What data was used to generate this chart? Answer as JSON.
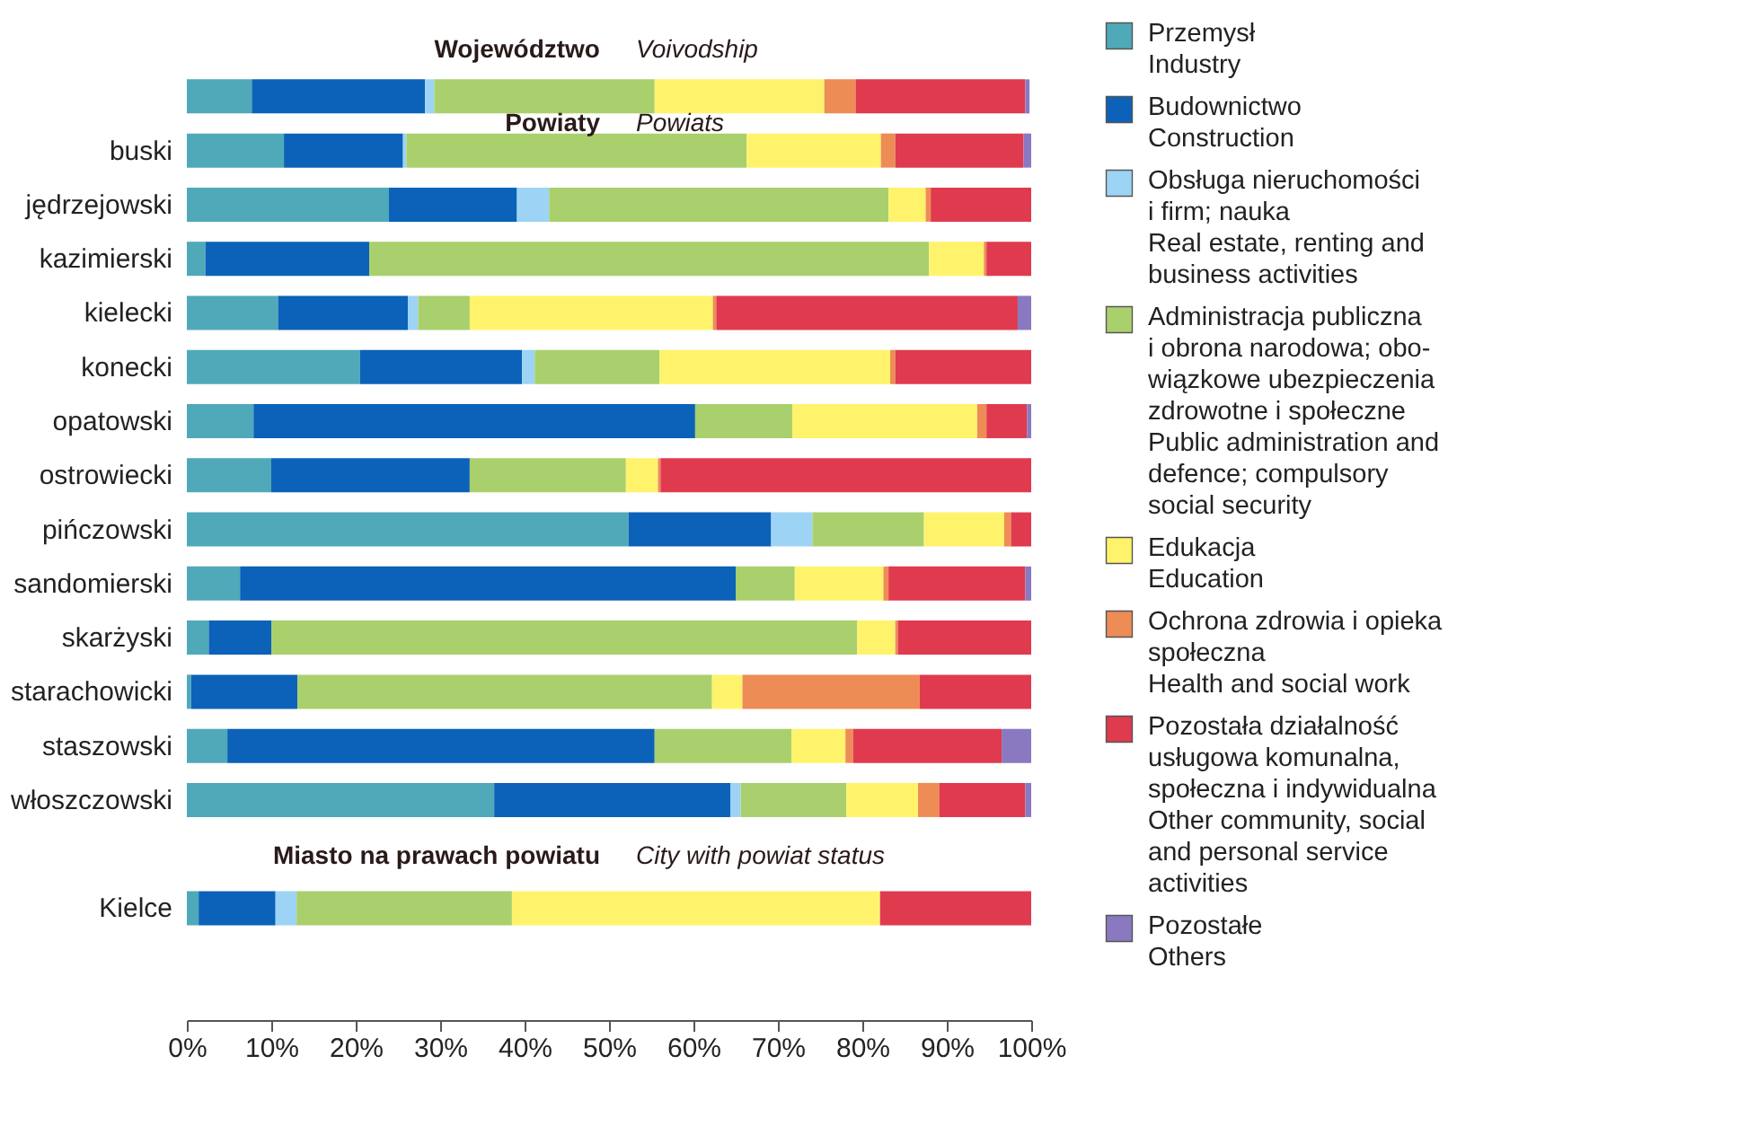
{
  "chart_data": {
    "type": "bar",
    "orientation": "horizontal",
    "stacked": true,
    "categories": [
      null,
      "buski",
      "jędrzejowski",
      "kazimierski",
      "kielecki",
      "konecki",
      "opatowski",
      "ostrowiecki",
      "pińczowski",
      "sandomierski",
      "skarżyski",
      "starachowicki",
      "staszowski",
      "włoszczowski",
      "Kielce"
    ],
    "series": [
      {
        "name": "Przemysł\nIndustry",
        "color": "#4fa9b9",
        "values": [
          7.7,
          11.5,
          23.9,
          2.2,
          10.8,
          20.5,
          7.9,
          10.0,
          52.3,
          6.3,
          2.6,
          0.5,
          4.8,
          36.4,
          1.4
        ]
      },
      {
        "name": "Budownictwo\nConstruction",
        "color": "#0b62b8",
        "values": [
          20.5,
          14.1,
          15.2,
          19.4,
          15.4,
          19.2,
          52.3,
          23.5,
          16.9,
          58.7,
          7.4,
          12.6,
          50.6,
          28.0,
          9.1
        ]
      },
      {
        "name": "Obsługa nieruchomości\ni firm; nauka\nReal estate, renting and\nbusiness activities",
        "color": "#9dd3f4",
        "values": [
          1.1,
          0.4,
          3.8,
          0,
          1.2,
          1.5,
          0,
          0,
          4.9,
          0,
          0,
          0,
          0,
          1.2,
          2.5
        ]
      },
      {
        "name": "Administracja publiczna\ni obrona narodowa; obo-\nwiązkowe ubezpieczenia\nzdrowotne i społeczne\nPublic administration and\ndefence; compulsory\nsocial security",
        "color": "#a9d06c",
        "values": [
          26.1,
          40.3,
          40.2,
          66.3,
          6.1,
          14.8,
          11.5,
          18.5,
          13.2,
          7.0,
          69.4,
          49.1,
          16.2,
          12.5,
          25.5
        ]
      },
      {
        "name": "Edukacja\nEducation",
        "color": "#fff36c",
        "values": [
          20.1,
          15.9,
          4.4,
          6.5,
          28.8,
          27.3,
          21.9,
          3.8,
          9.5,
          10.5,
          4.5,
          3.6,
          6.4,
          8.5,
          43.6
        ]
      },
      {
        "name": "Ochrona zdrowia i opieka\nspołeczna\nHealth and social work",
        "color": "#ee8c55",
        "values": [
          3.7,
          1.7,
          0.6,
          0.3,
          0.4,
          0.6,
          1.1,
          0.3,
          0.8,
          0.6,
          0.3,
          21.0,
          0.9,
          2.5,
          0
        ]
      },
      {
        "name": "Pozostała działalność\nusługowa komunalna,\nspołeczna i indywidualna\nOther community, social\nand personal service\nactivities",
        "color": "#e03a4f",
        "values": [
          20.1,
          15.2,
          11.9,
          5.3,
          35.7,
          16.1,
          4.8,
          43.9,
          2.4,
          16.2,
          15.8,
          13.2,
          17.6,
          10.2,
          17.9
        ]
      },
      {
        "name": "Pozostałe\nOthers",
        "color": "#8a79c0",
        "values": [
          0.5,
          0.9,
          0,
          0,
          1.6,
          0,
          0.5,
          0,
          0,
          0.7,
          0,
          0,
          3.5,
          0.7,
          0
        ]
      }
    ],
    "xlim": [
      0,
      100
    ],
    "xticks": [
      {
        "value": 0,
        "label": "0%"
      },
      {
        "value": 10,
        "label": "10%"
      },
      {
        "value": 20,
        "label": "20%"
      },
      {
        "value": 30,
        "label": "30%"
      },
      {
        "value": 40,
        "label": "40%"
      },
      {
        "value": 50,
        "label": "50%"
      },
      {
        "value": 60,
        "label": "60%"
      },
      {
        "value": 70,
        "label": "70%"
      },
      {
        "value": 80,
        "label": "80%"
      },
      {
        "value": 90,
        "label": "90%"
      },
      {
        "value": 100,
        "label": "100%"
      }
    ],
    "annotations": [
      "Województwo",
      "Voivodship",
      "Powiaty",
      "Powiats",
      "Miasto na prawach powiatu",
      "City with powiat status"
    ],
    "grid": false,
    "legend": "right"
  }
}
